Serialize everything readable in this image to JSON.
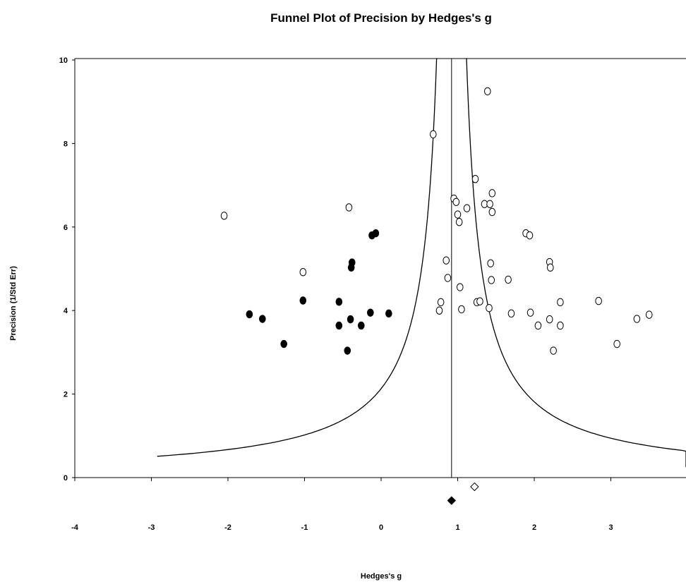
{
  "chart_data": {
    "type": "scatter",
    "title": "Funnel Plot of Precision by Hedges's g",
    "xlabel": "Hedges's g",
    "ylabel": "Precision (1/Std Err)",
    "xlim": [
      -4,
      4
    ],
    "ylim": [
      -1.3,
      10
    ],
    "x_ticks": [
      "-4",
      "-3",
      "-2",
      "-1",
      "0",
      "1",
      "2",
      "3"
    ],
    "y_ticks": [
      "0",
      "2",
      "4",
      "6",
      "8",
      "10"
    ],
    "grid": false,
    "legend": "none",
    "summary_effect": 0.92,
    "funnel_z": 1.96,
    "series": [
      {
        "marker": "open-circle",
        "points": [
          [
            -2.05,
            6.27
          ],
          [
            -1.02,
            4.92
          ],
          [
            -0.42,
            6.47
          ],
          [
            0.68,
            8.22
          ],
          [
            0.85,
            5.2
          ],
          [
            0.87,
            4.78
          ],
          [
            0.78,
            4.2
          ],
          [
            0.76,
            4.0
          ],
          [
            0.95,
            6.68
          ],
          [
            0.98,
            6.6
          ],
          [
            1.0,
            6.3
          ],
          [
            1.02,
            6.12
          ],
          [
            1.03,
            4.56
          ],
          [
            1.05,
            4.03
          ],
          [
            1.12,
            6.45
          ],
          [
            1.23,
            7.15
          ],
          [
            1.25,
            4.2
          ],
          [
            1.29,
            4.22
          ],
          [
            1.35,
            6.55
          ],
          [
            1.39,
            9.25
          ],
          [
            1.41,
            4.06
          ],
          [
            1.42,
            6.55
          ],
          [
            1.43,
            5.13
          ],
          [
            1.44,
            4.73
          ],
          [
            1.45,
            6.81
          ],
          [
            1.45,
            6.36
          ],
          [
            1.66,
            4.74
          ],
          [
            1.7,
            3.93
          ],
          [
            1.89,
            5.85
          ],
          [
            1.94,
            5.8
          ],
          [
            1.95,
            3.95
          ],
          [
            2.05,
            3.64
          ],
          [
            2.2,
            5.16
          ],
          [
            2.2,
            3.79
          ],
          [
            2.21,
            5.03
          ],
          [
            2.25,
            3.04
          ],
          [
            2.34,
            4.2
          ],
          [
            2.34,
            3.64
          ],
          [
            2.84,
            4.23
          ],
          [
            3.08,
            3.2
          ],
          [
            3.34,
            3.8
          ],
          [
            3.5,
            3.9
          ]
        ]
      },
      {
        "marker": "filled-circle",
        "points": [
          [
            -1.72,
            3.91
          ],
          [
            -1.55,
            3.8
          ],
          [
            -1.27,
            3.2
          ],
          [
            -1.02,
            4.24
          ],
          [
            -0.55,
            4.21
          ],
          [
            -0.55,
            3.64
          ],
          [
            -0.44,
            3.04
          ],
          [
            -0.4,
            3.79
          ],
          [
            -0.38,
            5.15
          ],
          [
            -0.39,
            5.03
          ],
          [
            -0.26,
            3.64
          ],
          [
            -0.14,
            3.95
          ],
          [
            -0.12,
            5.8
          ],
          [
            -0.07,
            5.85
          ],
          [
            0.1,
            3.93
          ]
        ]
      }
    ],
    "diamonds": [
      {
        "fill": "open",
        "x": 1.22,
        "y": -0.22
      },
      {
        "fill": "filled",
        "x": 0.92,
        "y": -0.55
      }
    ]
  }
}
